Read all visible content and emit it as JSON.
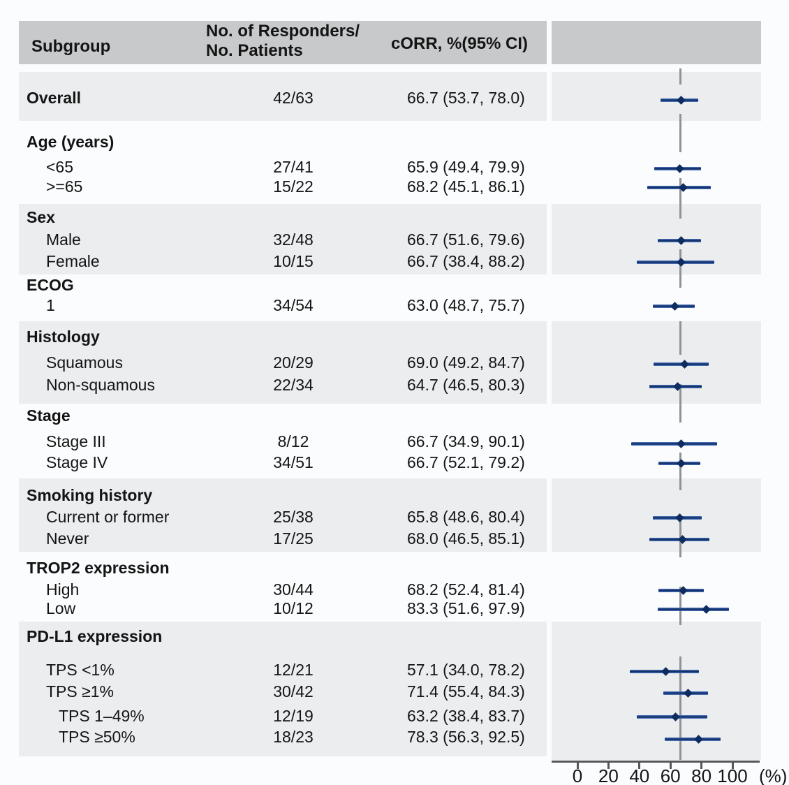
{
  "table": {
    "header": {
      "subgroup": "Subgroup",
      "responders_line1": "No. of Responders/",
      "responders_line2": "No. Patients",
      "corr": "cORR, %(95% CI)"
    }
  },
  "chart_data": {
    "type": "forest",
    "xlabel": "(%)",
    "x_ticks": [
      0,
      20,
      40,
      60,
      80,
      100
    ],
    "xlim": [
      0,
      100
    ],
    "reference_line": 66.7,
    "marker_color": "#1c4083",
    "reference_line_color": "#8f9397",
    "rows": [
      {
        "label": "Overall",
        "type": "group",
        "ratio": "42/63",
        "corr": "66.7 (53.7, 78.0)",
        "est": 66.7,
        "lo": 53.7,
        "hi": 78.0
      },
      {
        "label": "Age (years)",
        "type": "group"
      },
      {
        "label": "<65",
        "type": "item",
        "ratio": "27/41",
        "corr": "65.9 (49.4, 79.9)",
        "est": 65.9,
        "lo": 49.4,
        "hi": 79.9
      },
      {
        "label": ">=65",
        "type": "item",
        "ratio": "15/22",
        "corr": "68.2 (45.1, 86.1)",
        "est": 68.2,
        "lo": 45.1,
        "hi": 86.1
      },
      {
        "label": "Sex",
        "type": "group"
      },
      {
        "label": "Male",
        "type": "item",
        "ratio": "32/48",
        "corr": "66.7 (51.6, 79.6)",
        "est": 66.7,
        "lo": 51.6,
        "hi": 79.6
      },
      {
        "label": "Female",
        "type": "item",
        "ratio": "10/15",
        "corr": "66.7 (38.4, 88.2)",
        "est": 66.7,
        "lo": 38.4,
        "hi": 88.2
      },
      {
        "label": "ECOG",
        "type": "group"
      },
      {
        "label": "1",
        "type": "item",
        "ratio": "34/54",
        "corr": "63.0 (48.7, 75.7)",
        "est": 63.0,
        "lo": 48.7,
        "hi": 75.7
      },
      {
        "label": "Histology",
        "type": "group"
      },
      {
        "label": "Squamous",
        "type": "item",
        "ratio": "20/29",
        "corr": "69.0 (49.2, 84.7)",
        "est": 69.0,
        "lo": 49.2,
        "hi": 84.7
      },
      {
        "label": "Non-squamous",
        "type": "item",
        "ratio": "22/34",
        "corr": "64.7 (46.5, 80.3)",
        "est": 64.7,
        "lo": 46.5,
        "hi": 80.3
      },
      {
        "label": "Stage",
        "type": "group"
      },
      {
        "label": "Stage III",
        "type": "item",
        "ratio": "8/12",
        "corr": "66.7 (34.9, 90.1)",
        "est": 66.7,
        "lo": 34.9,
        "hi": 90.1
      },
      {
        "label": "Stage IV",
        "type": "item",
        "ratio": "34/51",
        "corr": "66.7 (52.1, 79.2)",
        "est": 66.7,
        "lo": 52.1,
        "hi": 79.2
      },
      {
        "label": "Smoking history",
        "type": "group"
      },
      {
        "label": "Current or former",
        "type": "item",
        "ratio": "25/38",
        "corr": "65.8 (48.6, 80.4)",
        "est": 65.8,
        "lo": 48.6,
        "hi": 80.4
      },
      {
        "label": "Never",
        "type": "item",
        "ratio": "17/25",
        "corr": "68.0 (46.5, 85.1)",
        "est": 68.0,
        "lo": 46.5,
        "hi": 85.1
      },
      {
        "label": "TROP2 expression",
        "type": "group"
      },
      {
        "label": "High",
        "type": "item",
        "ratio": "30/44",
        "corr": "68.2 (52.4, 81.4)",
        "est": 68.2,
        "lo": 52.4,
        "hi": 81.4
      },
      {
        "label": "Low",
        "type": "item",
        "ratio": "10/12",
        "corr": "83.3 (51.6, 97.9)",
        "est": 83.3,
        "lo": 51.6,
        "hi": 97.9
      },
      {
        "label": "PD-L1 expression",
        "type": "group"
      },
      {
        "label": "TPS <1%",
        "type": "item",
        "ratio": "12/21",
        "corr": "57.1 (34.0, 78.2)",
        "est": 57.1,
        "lo": 34.0,
        "hi": 78.2
      },
      {
        "label": "TPS ≥1%",
        "type": "item",
        "ratio": "30/42",
        "corr": "71.4 (55.4, 84.3)",
        "est": 71.4,
        "lo": 55.4,
        "hi": 84.3
      },
      {
        "label": "TPS 1–49%",
        "type": "subitem",
        "ratio": "12/19",
        "corr": "63.2 (38.4, 83.7)",
        "est": 63.2,
        "lo": 38.4,
        "hi": 83.7
      },
      {
        "label": "TPS ≥50%",
        "type": "subitem",
        "ratio": "18/23",
        "corr": "78.3 (56.3, 92.5)",
        "est": 78.3,
        "lo": 56.3,
        "hi": 92.5
      }
    ]
  }
}
